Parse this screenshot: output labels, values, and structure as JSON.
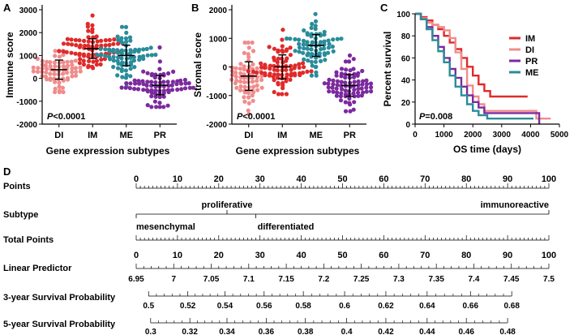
{
  "chart_data": [
    {
      "panel": "A",
      "type": "scatter",
      "title": "",
      "xlabel": "Gene expression subtypes",
      "ylabel": "Immune score",
      "categories": [
        "DI",
        "IM",
        "ME",
        "PR"
      ],
      "ylim": [
        -2000,
        3000
      ],
      "yticks": [
        -2000,
        -1000,
        0,
        1000,
        2000,
        3000
      ],
      "yticklabels": [
        "-2000",
        "-1000",
        "0",
        "1000",
        "2000",
        "3000"
      ],
      "colors": [
        "#f08c8c",
        "#e02a2a",
        "#2a8c9a",
        "#7c2a9e"
      ],
      "groups": [
        {
          "name": "DI",
          "color": "#f08c8c",
          "mean": 380,
          "sd": 420,
          "min": -600,
          "max": 1200,
          "n": 70
        },
        {
          "name": "IM",
          "color": "#e02a2a",
          "mean": 1300,
          "sd": 430,
          "min": 450,
          "max": 2750,
          "n": 80
        },
        {
          "name": "ME",
          "color": "#2a8c9a",
          "mean": 1000,
          "sd": 450,
          "min": -350,
          "max": 2250,
          "n": 75
        },
        {
          "name": "PR",
          "color": "#7c2a9e",
          "mean": -300,
          "sd": 420,
          "min": -1250,
          "max": 1350,
          "n": 80
        }
      ],
      "annotation": {
        "italic": "P",
        "text": "<0.0001"
      }
    },
    {
      "panel": "B",
      "type": "scatter",
      "title": "",
      "xlabel": "Gene expression subtypes",
      "ylabel": "Stromal score",
      "categories": [
        "DI",
        "IM",
        "ME",
        "PR"
      ],
      "ylim": [
        -2000,
        2000
      ],
      "yticks": [
        -2000,
        -1000,
        0,
        1000,
        2000
      ],
      "yticklabels": [
        "-2000",
        "-1000",
        "0",
        "1000",
        "2000"
      ],
      "colors": [
        "#f08c8c",
        "#e02a2a",
        "#2a8c9a",
        "#7c2a9e"
      ],
      "groups": [
        {
          "name": "DI",
          "color": "#f08c8c",
          "mean": -320,
          "sd": 500,
          "min": -1650,
          "max": 850,
          "n": 70
        },
        {
          "name": "IM",
          "color": "#e02a2a",
          "mean": 0,
          "sd": 420,
          "min": -950,
          "max": 1300,
          "n": 80
        },
        {
          "name": "ME",
          "color": "#2a8c9a",
          "mean": 750,
          "sd": 380,
          "min": -300,
          "max": 1850,
          "n": 75
        },
        {
          "name": "PR",
          "color": "#7c2a9e",
          "mean": -650,
          "sd": 380,
          "min": -1550,
          "max": 400,
          "n": 80
        }
      ],
      "annotation": {
        "italic": "P",
        "text": "<0.0001"
      }
    },
    {
      "panel": "C",
      "type": "line",
      "title": "",
      "xlabel": "OS time (days)",
      "ylabel": "Percent survival",
      "xlim": [
        0,
        5000
      ],
      "ylim": [
        0,
        100
      ],
      "xticks": [
        0,
        1000,
        2000,
        3000,
        4000,
        5000
      ],
      "xticklabels": [
        "0",
        "1000",
        "2000",
        "3000",
        "4000",
        "5000"
      ],
      "yticks": [
        0,
        20,
        40,
        60,
        80,
        100
      ],
      "yticklabels": [
        "0",
        "20",
        "40",
        "60",
        "80",
        "100"
      ],
      "legend_position": "top-right",
      "series": [
        {
          "name": "IM",
          "color": "#e02a2a",
          "x": [
            0,
            200,
            400,
            600,
            800,
            1000,
            1200,
            1400,
            1600,
            1800,
            2000,
            2200,
            2400,
            2600,
            2800,
            3200,
            3500,
            3900
          ],
          "y": [
            100,
            97,
            94,
            90,
            86,
            80,
            74,
            68,
            60,
            52,
            44,
            36,
            30,
            25,
            25,
            25,
            25,
            25
          ]
        },
        {
          "name": "DI",
          "color": "#f08c8c",
          "x": [
            0,
            200,
            400,
            600,
            800,
            1000,
            1200,
            1400,
            1600,
            1800,
            2000,
            2200,
            2400,
            2700,
            3300,
            4200,
            4700
          ],
          "y": [
            100,
            96,
            92,
            90,
            88,
            85,
            78,
            65,
            50,
            35,
            25,
            18,
            12,
            12,
            12,
            5,
            5
          ]
        },
        {
          "name": "PR",
          "color": "#7c2a9e",
          "x": [
            0,
            200,
            400,
            600,
            800,
            1000,
            1200,
            1400,
            1600,
            1800,
            2000,
            2200,
            2400,
            2800,
            3500,
            4200,
            4300
          ],
          "y": [
            100,
            95,
            88,
            80,
            70,
            60,
            50,
            42,
            34,
            26,
            20,
            15,
            10,
            10,
            10,
            10,
            0
          ]
        },
        {
          "name": "ME",
          "color": "#2a8c9a",
          "x": [
            0,
            200,
            400,
            600,
            800,
            1000,
            1200,
            1400,
            1600,
            1800,
            2000,
            2200,
            2500,
            3000,
            3600,
            4100
          ],
          "y": [
            100,
            95,
            86,
            76,
            66,
            56,
            44,
            34,
            26,
            18,
            12,
            8,
            5,
            5,
            5,
            5
          ]
        }
      ],
      "annotation": {
        "italic": "P",
        "text": "=0.008"
      }
    },
    {
      "panel": "D",
      "type": "nomogram",
      "title": "",
      "rows": [
        {
          "label": "Points",
          "min": 0,
          "max": 100,
          "major_labels": [
            "0",
            "10",
            "20",
            "30",
            "40",
            "50",
            "60",
            "70",
            "80",
            "90",
            "100"
          ],
          "minor_per_major": 10
        },
        {
          "label": "Subtype",
          "levels": [
            {
              "name": "mesenchymal",
              "points": 0,
              "side": "below"
            },
            {
              "name": "proliferative",
              "points": 22,
              "side": "above"
            },
            {
              "name": "differentiated",
              "points": 29,
              "side": "below"
            },
            {
              "name": "immunoreactive",
              "points": 100,
              "side": "above"
            }
          ]
        },
        {
          "label": "Total Points",
          "min": 0,
          "max": 100,
          "major_labels": [
            "0",
            "10",
            "20",
            "30",
            "40",
            "50",
            "60",
            "70",
            "80",
            "90",
            "100"
          ],
          "minor_per_major": 10
        },
        {
          "label": "Linear Predictor",
          "min": 6.95,
          "max": 7.5,
          "major_labels": [
            "6.95",
            "7",
            "7.05",
            "7.1",
            "7.15",
            "7.2",
            "7.25",
            "7.3",
            "7.35",
            "7.4",
            "7.45",
            "7.5"
          ],
          "minor_per_major": 5
        },
        {
          "label": "3-year Survival Probability",
          "values": [
            0.5,
            0.52,
            0.54,
            0.56,
            0.58,
            0.6,
            0.62,
            0.64,
            0.66,
            0.68
          ],
          "major_labels": [
            "0.5",
            "0.52",
            "0.54",
            "0.56",
            "0.58",
            "0.6",
            "0.62",
            "0.64",
            "0.66",
            "0.68"
          ],
          "points": [
            3,
            12.5,
            21.5,
            31,
            40.5,
            50.5,
            60.5,
            70.5,
            81,
            91
          ]
        },
        {
          "label": "5-year Survival Probability",
          "values": [
            0.3,
            0.32,
            0.34,
            0.36,
            0.38,
            0.4,
            0.42,
            0.44,
            0.46,
            0.48
          ],
          "major_labels": [
            "0.3",
            "0.32",
            "0.34",
            "0.36",
            "0.38",
            "0.4",
            "0.42",
            "0.44",
            "0.46",
            "0.48"
          ],
          "points": [
            3.5,
            13,
            22,
            31.5,
            41,
            51,
            60.5,
            70.5,
            80,
            90
          ]
        }
      ]
    }
  ],
  "panel_labels": {
    "a": "A",
    "b": "B",
    "c": "C",
    "d": "D"
  }
}
